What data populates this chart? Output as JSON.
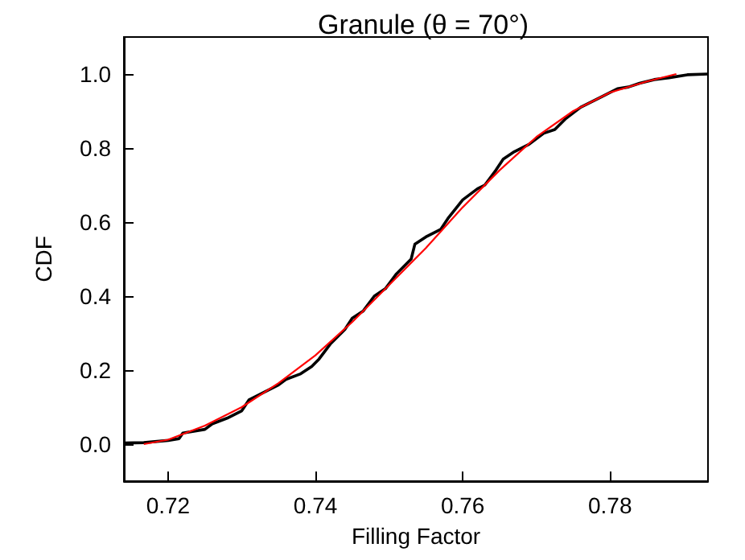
{
  "chart_data": {
    "type": "line",
    "title": "Granule (θ = 70°)",
    "xlabel": "Filling Factor",
    "ylabel": "CDF",
    "xlim": [
      0.714,
      0.7933
    ],
    "xticks": [
      0.72,
      0.74,
      0.76,
      0.78
    ],
    "ylim": [
      -0.1,
      1.1
    ],
    "yticks": [
      {
        "value": 0,
        "label": "0.0"
      },
      0.2,
      0.4,
      0.6,
      0.8,
      {
        "value": 1,
        "label": "1.0"
      }
    ],
    "grid": false,
    "marker": "none",
    "line_style": "solid",
    "series": [
      {
        "color": "#000000",
        "x": [
          0.714,
          0.7167,
          0.72,
          0.7215,
          0.722,
          0.725,
          0.726,
          0.728,
          0.73,
          0.731,
          0.733,
          0.735,
          0.736,
          0.738,
          0.7395,
          0.7405,
          0.742,
          0.744,
          0.745,
          0.7465,
          0.748,
          0.7495,
          0.751,
          0.752,
          0.753,
          0.7535,
          0.755,
          0.757,
          0.758,
          0.76,
          0.762,
          0.763,
          0.7645,
          0.7655,
          0.767,
          0.769,
          0.771,
          0.7725,
          0.774,
          0.776,
          0.779,
          0.781,
          0.7825,
          0.784,
          0.786,
          0.788,
          0.7905,
          0.7933
        ],
        "values": [
          0.003,
          0.004,
          0.01,
          0.015,
          0.03,
          0.04,
          0.055,
          0.07,
          0.09,
          0.12,
          0.14,
          0.16,
          0.175,
          0.19,
          0.21,
          0.23,
          0.27,
          0.31,
          0.34,
          0.36,
          0.4,
          0.42,
          0.46,
          0.48,
          0.5,
          0.54,
          0.56,
          0.58,
          0.61,
          0.66,
          0.69,
          0.7,
          0.74,
          0.77,
          0.79,
          0.81,
          0.84,
          0.85,
          0.88,
          0.91,
          0.94,
          0.96,
          0.965,
          0.975,
          0.985,
          0.99,
          0.998,
          1.0
        ]
      },
      {
        "color": "#ff0000",
        "x": [
          0.7167,
          0.72,
          0.725,
          0.73,
          0.735,
          0.74,
          0.745,
          0.75,
          0.755,
          0.76,
          0.765,
          0.77,
          0.775,
          0.78,
          0.785,
          0.789
        ],
        "values": [
          0.0,
          0.012,
          0.05,
          0.1,
          0.165,
          0.24,
          0.33,
          0.43,
          0.53,
          0.64,
          0.74,
          0.83,
          0.9,
          0.95,
          0.98,
          1.0
        ]
      }
    ]
  }
}
